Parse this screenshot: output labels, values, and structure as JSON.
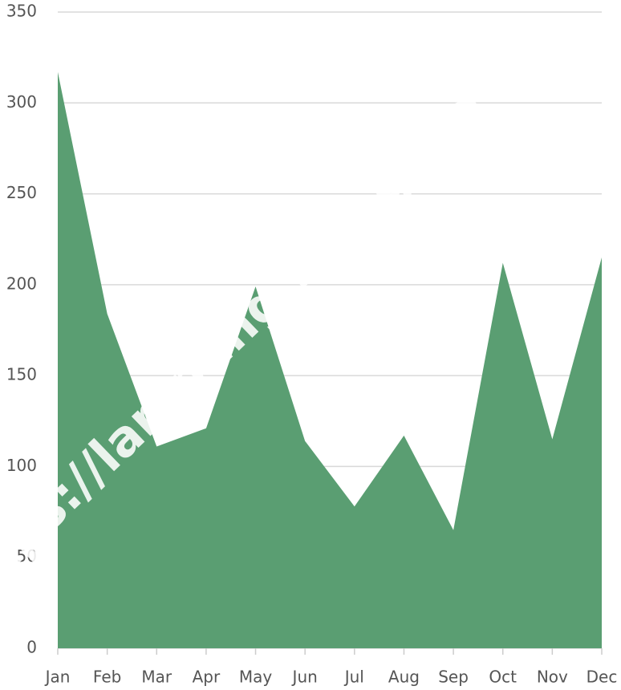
{
  "chart_data": {
    "type": "area",
    "categories": [
      "Jan",
      "Feb",
      "Mar",
      "Apr",
      "May",
      "Jun",
      "Jul",
      "Aug",
      "Sep",
      "Oct",
      "Nov",
      "Dec"
    ],
    "series": [
      {
        "color": "#5a9e72",
        "values": [
          317,
          184,
          111,
          121,
          199,
          114,
          78,
          117,
          65,
          212,
          115,
          215
        ]
      }
    ],
    "ylim": [
      0,
      350
    ],
    "yticks": [
      0,
      50,
      100,
      150,
      200,
      250,
      300,
      350
    ],
    "grid": true,
    "watermark": "https://lampung.bps.go.id"
  }
}
